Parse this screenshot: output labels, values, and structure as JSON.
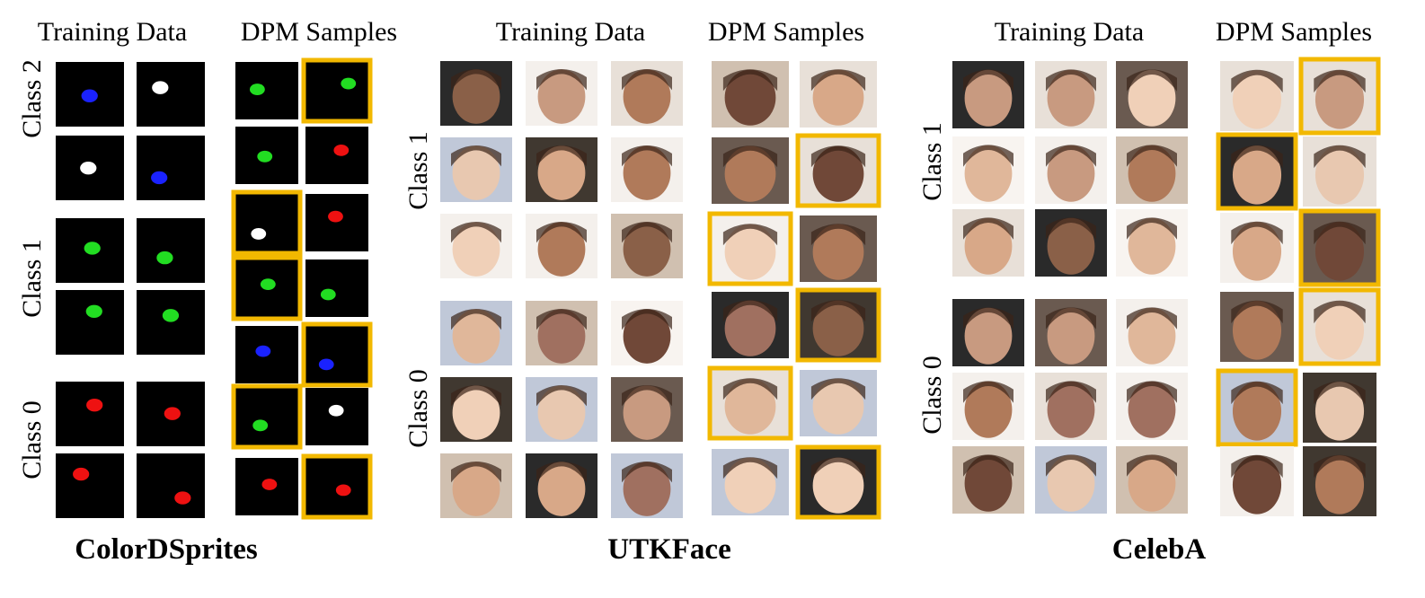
{
  "panels": [
    {
      "title": "ColorDSprites",
      "columns": [
        "Training Data",
        "DPM Samples"
      ],
      "classes": [
        "Class 2",
        "Class 1",
        "Class 0"
      ]
    },
    {
      "title": "UTKFace",
      "columns": [
        "Training Data",
        "DPM Samples"
      ],
      "classes": [
        "Class 1",
        "Class 0"
      ]
    },
    {
      "title": "CelebA",
      "columns": [
        "Training Data",
        "DPM Samples"
      ],
      "classes": [
        "Class 1",
        "Class 0"
      ]
    }
  ]
}
